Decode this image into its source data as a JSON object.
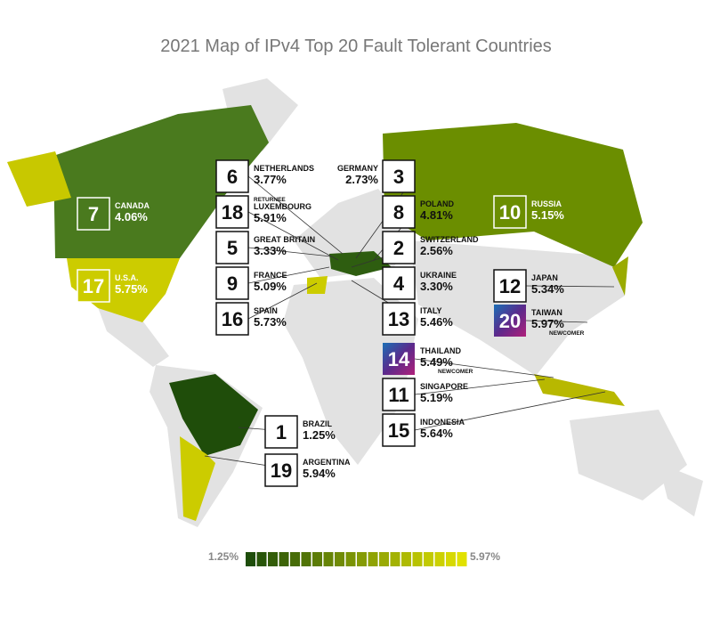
{
  "title": "2021 Map of IPv4 Top 20 Fault Tolerant Countries",
  "countries": [
    {
      "rank": "6",
      "name": "NETHERLANDS",
      "value": "3.77%"
    },
    {
      "rank": "18",
      "note": "RETURNEE",
      "name": "LUXEMBOURG",
      "value": "5.91%"
    },
    {
      "rank": "5",
      "name": "GREAT BRITAIN",
      "value": "3.33%"
    },
    {
      "rank": "9",
      "name": "FRANCE",
      "value": "5.09%"
    },
    {
      "rank": "16",
      "name": "SPAIN",
      "value": "5.73%"
    },
    {
      "rank": "7",
      "name": "CANADA",
      "value": "4.06%"
    },
    {
      "rank": "17",
      "name": "U.S.A.",
      "value": "5.75%"
    },
    {
      "rank": "3",
      "name": "GERMANY",
      "value": "2.73%"
    },
    {
      "rank": "8",
      "name": "POLAND",
      "value": "4.81%"
    },
    {
      "rank": "2",
      "name": "SWITZERLAND",
      "value": "2.56%"
    },
    {
      "rank": "4",
      "name": "UKRAINE",
      "value": "3.30%"
    },
    {
      "rank": "13",
      "name": "ITALY",
      "value": "5.46%"
    },
    {
      "rank": "10",
      "name": "RUSSIA",
      "value": "5.15%"
    },
    {
      "rank": "12",
      "name": "JAPAN",
      "value": "5.34%"
    },
    {
      "rank": "20",
      "name": "TAIWAN",
      "value": "5.97%",
      "note": "NEWCOMER"
    },
    {
      "rank": "14",
      "name": "THAILAND",
      "value": "5.49%",
      "note": "NEWCOMER"
    },
    {
      "rank": "11",
      "name": "SINGAPORE",
      "value": "5.19%"
    },
    {
      "rank": "15",
      "name": "INDONESIA",
      "value": "5.64%"
    },
    {
      "rank": "1",
      "name": "BRAZIL",
      "value": "1.25%"
    },
    {
      "rank": "19",
      "name": "ARGENTINA",
      "value": "5.94%"
    }
  ],
  "legend": {
    "min": "1.25%",
    "max": "5.97%"
  }
}
